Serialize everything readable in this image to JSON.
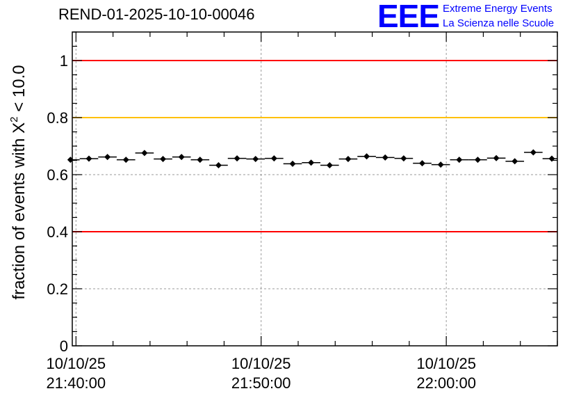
{
  "title": "REND-01-2025-10-10-00046",
  "logo": {
    "mark": "EEE",
    "line1": "Extreme Energy Events",
    "line2": "La Scienza nelle Scuole",
    "color": "#0000ff"
  },
  "chart_data": {
    "type": "scatter",
    "ylabel_prefix": "fraction of events with ",
    "ylabel_symbol": "X",
    "ylabel_sup": "2",
    "ylabel_suffix": " < 10.0",
    "xlabel": "",
    "ylim": [
      0,
      1.1
    ],
    "xlim_minutes": [
      -0.2,
      26.0
    ],
    "yticks": [
      0,
      0.2,
      0.4,
      0.6,
      0.8,
      1
    ],
    "ytick_labels": [
      "0",
      "0.2",
      "0.4",
      "0.6",
      "0.8",
      "1"
    ],
    "xticks": [
      {
        "minute": 0,
        "date": "10/10/25",
        "time": "21:40:00"
      },
      {
        "minute": 10,
        "date": "10/10/25",
        "time": "21:50:00"
      },
      {
        "minute": 20,
        "date": "10/10/25",
        "time": "22:00:00"
      }
    ],
    "grid": true,
    "bin_width_minutes": 1.0,
    "series": [
      {
        "name": "fraction",
        "x_minutes": [
          -0.3,
          0.7,
          1.7,
          2.7,
          3.7,
          4.7,
          5.7,
          6.7,
          7.7,
          8.7,
          9.7,
          10.7,
          11.7,
          12.7,
          13.7,
          14.7,
          15.7,
          16.7,
          17.7,
          18.7,
          19.7,
          20.7,
          21.7,
          22.7,
          23.7,
          24.7,
          25.7
        ],
        "values": [
          0.652,
          0.656,
          0.662,
          0.652,
          0.676,
          0.655,
          0.662,
          0.652,
          0.633,
          0.657,
          0.655,
          0.657,
          0.638,
          0.642,
          0.633,
          0.655,
          0.664,
          0.66,
          0.657,
          0.64,
          0.635,
          0.652,
          0.652,
          0.658,
          0.647,
          0.678,
          0.656
        ],
        "errors": [
          0.007,
          0.007,
          0.007,
          0.007,
          0.007,
          0.007,
          0.007,
          0.007,
          0.007,
          0.007,
          0.007,
          0.007,
          0.007,
          0.007,
          0.007,
          0.007,
          0.007,
          0.007,
          0.007,
          0.007,
          0.007,
          0.007,
          0.007,
          0.007,
          0.007,
          0.007,
          0.007
        ]
      }
    ],
    "reference_lines": [
      {
        "y": 1.0,
        "color": "#ff0000"
      },
      {
        "y": 0.8,
        "color": "#ffc000"
      },
      {
        "y": 0.4,
        "color": "#ff0000"
      }
    ]
  }
}
